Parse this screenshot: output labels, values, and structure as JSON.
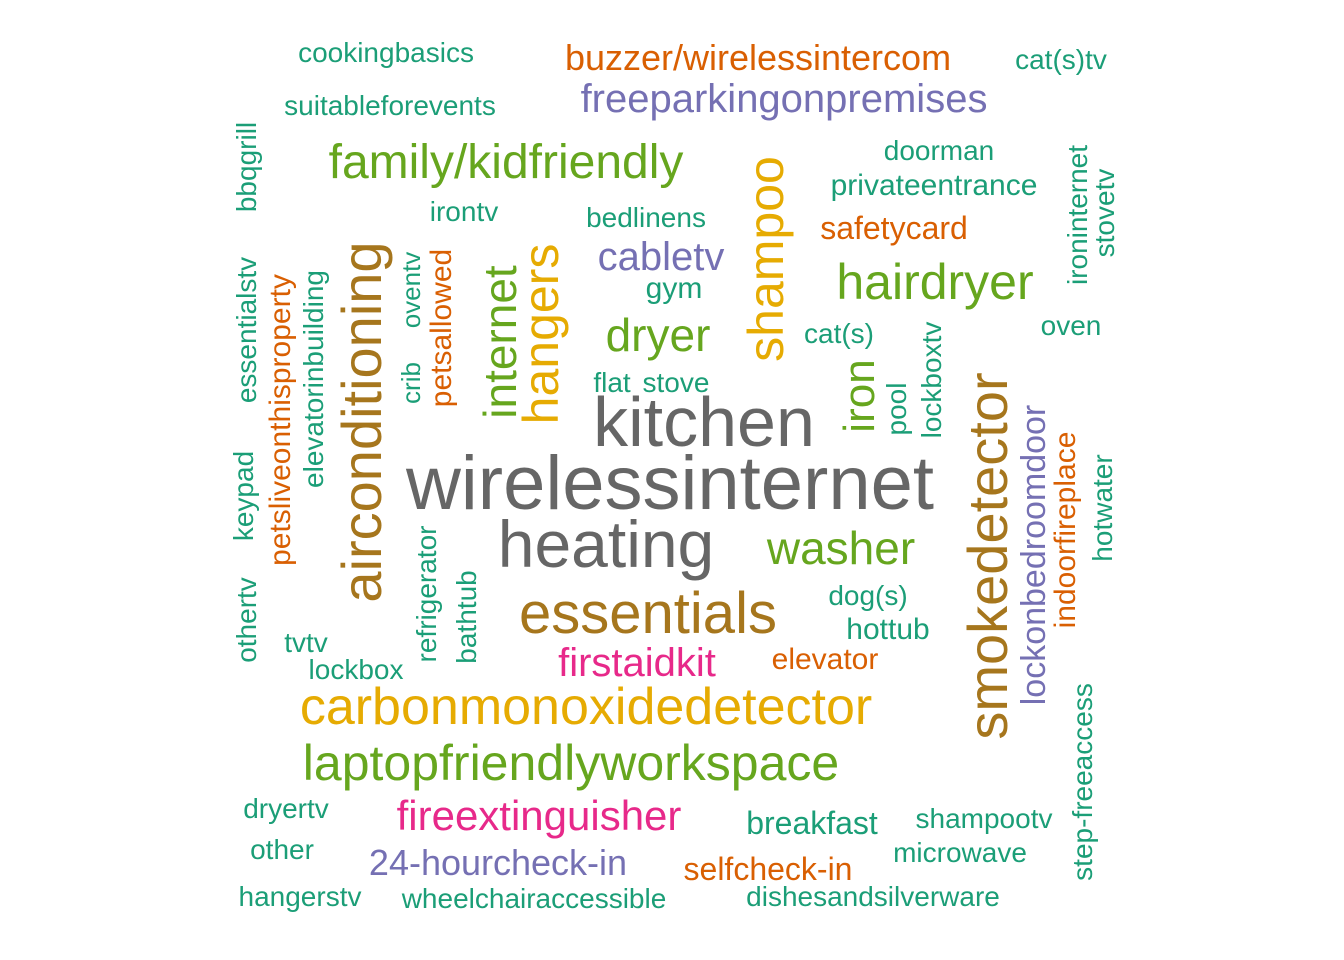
{
  "palette": {
    "teal": "#1b9e77",
    "orange": "#d95f02",
    "purple": "#7570b3",
    "pink": "#e7298a",
    "green": "#66a61e",
    "gold": "#e6ab02",
    "brown": "#a6761d",
    "gray": "#666666"
  },
  "words": [
    {
      "text": "wirelessinternet",
      "color": "gray"
    },
    {
      "text": "kitchen",
      "color": "gray"
    },
    {
      "text": "heating",
      "color": "gray"
    },
    {
      "text": "essentials",
      "color": "brown"
    },
    {
      "text": "smokedetector",
      "color": "brown"
    },
    {
      "text": "airconditioning",
      "color": "brown"
    },
    {
      "text": "carbonmonoxidedetector",
      "color": "gold"
    },
    {
      "text": "hangers",
      "color": "gold"
    },
    {
      "text": "shampoo",
      "color": "gold"
    },
    {
      "text": "laptopfriendlyworkspace",
      "color": "green"
    },
    {
      "text": "family/kidfriendly",
      "color": "green"
    },
    {
      "text": "hairdryer",
      "color": "green"
    },
    {
      "text": "washer",
      "color": "green"
    },
    {
      "text": "dryer",
      "color": "green"
    },
    {
      "text": "internet",
      "color": "green"
    },
    {
      "text": "iron",
      "color": "green"
    },
    {
      "text": "fireextinguisher",
      "color": "pink"
    },
    {
      "text": "firstaidkit",
      "color": "pink"
    },
    {
      "text": "freeparkingonpremises",
      "color": "purple"
    },
    {
      "text": "24-hourcheck-in",
      "color": "purple"
    },
    {
      "text": "cabletv",
      "color": "purple"
    },
    {
      "text": "lockonbedroomdoor",
      "color": "purple"
    },
    {
      "text": "buzzer/wirelessintercom",
      "color": "orange"
    },
    {
      "text": "selfcheck-in",
      "color": "orange"
    },
    {
      "text": "elevator",
      "color": "orange"
    },
    {
      "text": "safetycard",
      "color": "orange"
    },
    {
      "text": "indoorfireplace",
      "color": "orange"
    },
    {
      "text": "petsallowed",
      "color": "orange"
    },
    {
      "text": "petsliveonthisproperty",
      "color": "orange"
    },
    {
      "text": "breakfast",
      "color": "teal"
    },
    {
      "text": "cookingbasics",
      "color": "teal"
    },
    {
      "text": "suitableforevents",
      "color": "teal"
    },
    {
      "text": "cat(s)tv",
      "color": "teal"
    },
    {
      "text": "doorman",
      "color": "teal"
    },
    {
      "text": "privateentrance",
      "color": "teal"
    },
    {
      "text": "bedlinens",
      "color": "teal"
    },
    {
      "text": "irontv",
      "color": "teal"
    },
    {
      "text": "gym",
      "color": "teal"
    },
    {
      "text": "cat(s)",
      "color": "teal"
    },
    {
      "text": "flat",
      "color": "teal"
    },
    {
      "text": "stove",
      "color": "teal"
    },
    {
      "text": "oven",
      "color": "teal"
    },
    {
      "text": "dog(s)",
      "color": "teal"
    },
    {
      "text": "hottub",
      "color": "teal"
    },
    {
      "text": "tvtv",
      "color": "teal"
    },
    {
      "text": "lockbox",
      "color": "teal"
    },
    {
      "text": "dryertv",
      "color": "teal"
    },
    {
      "text": "other",
      "color": "teal"
    },
    {
      "text": "hangerstv",
      "color": "teal"
    },
    {
      "text": "wheelchairaccessible",
      "color": "teal"
    },
    {
      "text": "dishesandsilverware",
      "color": "teal"
    },
    {
      "text": "microwave",
      "color": "teal"
    },
    {
      "text": "shampootv",
      "color": "teal"
    },
    {
      "text": "bbqgrill",
      "color": "teal"
    },
    {
      "text": "essentialstv",
      "color": "teal"
    },
    {
      "text": "keypad",
      "color": "teal"
    },
    {
      "text": "othertv",
      "color": "teal"
    },
    {
      "text": "elevatorinbuilding",
      "color": "teal"
    },
    {
      "text": "crib",
      "color": "teal"
    },
    {
      "text": "oventv",
      "color": "teal"
    },
    {
      "text": "refrigerator",
      "color": "teal"
    },
    {
      "text": "bathtub",
      "color": "teal"
    },
    {
      "text": "pool",
      "color": "teal"
    },
    {
      "text": "lockboxtv",
      "color": "teal"
    },
    {
      "text": "ironinternet",
      "color": "teal"
    },
    {
      "text": "stovetv",
      "color": "teal"
    },
    {
      "text": "hotwater",
      "color": "teal"
    },
    {
      "text": "step-freeaccess",
      "color": "teal"
    }
  ]
}
